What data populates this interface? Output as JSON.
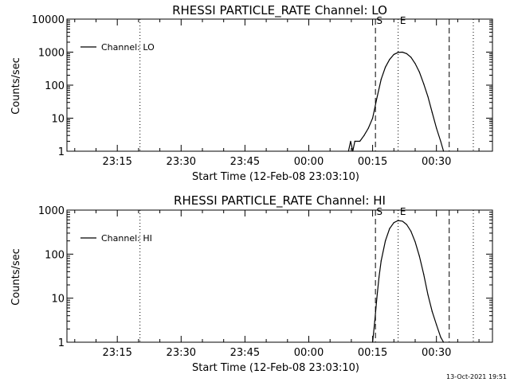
{
  "footer": {
    "timestamp": "13-Oct-2021 19:51"
  },
  "chart_data": [
    {
      "type": "line",
      "title": "RHESSI PARTICLE_RATE Channel: LO",
      "xlabel": "Start Time (12-Feb-08 23:03:10)",
      "ylabel": "Counts/sec",
      "yscale": "log",
      "ylim": [
        1,
        10000
      ],
      "xlim": [
        "23:03:10",
        "00:43:10"
      ],
      "x_ticks": [
        "23:15",
        "23:30",
        "23:45",
        "00:00",
        "00:15",
        "00:30"
      ],
      "y_ticks": [
        "1",
        "10",
        "100",
        "1000",
        "10000"
      ],
      "legend": {
        "entries": [
          "Channel: LO"
        ],
        "placement": "top-left"
      },
      "markers": [
        {
          "label": "S",
          "time": "00:15:40",
          "style": "dashed"
        },
        {
          "label": "E",
          "time": "00:21:00",
          "style": "dotted"
        }
      ],
      "vlines": [
        {
          "time": "23:20:20",
          "style": "dotted"
        },
        {
          "time": "00:33:00",
          "style": "dashed"
        },
        {
          "time": "00:38:40",
          "style": "dotted"
        }
      ],
      "series": [
        {
          "name": "Channel: LO",
          "x": [
            "00:09:20",
            "00:09:50",
            "00:10:20",
            "00:10:50",
            "00:12:00",
            "00:13:00",
            "00:14:00",
            "00:15:00",
            "00:16:00",
            "00:17:00",
            "00:18:00",
            "00:19:00",
            "00:20:00",
            "00:21:00",
            "00:22:00",
            "00:23:00",
            "00:24:00",
            "00:25:00",
            "00:26:00",
            "00:27:00",
            "00:28:00",
            "00:29:00",
            "00:30:00",
            "00:31:00",
            "00:31:40"
          ],
          "y": [
            1,
            2,
            1,
            2,
            2,
            3,
            5,
            10,
            40,
            150,
            350,
            600,
            850,
            980,
            1000,
            900,
            700,
            450,
            250,
            110,
            45,
            15,
            5,
            2,
            1
          ]
        }
      ]
    },
    {
      "type": "line",
      "title": "RHESSI PARTICLE_RATE Channel: HI",
      "xlabel": "Start Time (12-Feb-08 23:03:10)",
      "ylabel": "Counts/sec",
      "yscale": "log",
      "ylim": [
        1,
        1000
      ],
      "xlim": [
        "23:03:10",
        "00:43:10"
      ],
      "x_ticks": [
        "23:15",
        "23:30",
        "23:45",
        "00:00",
        "00:15",
        "00:30"
      ],
      "y_ticks": [
        "1",
        "10",
        "100",
        "1000"
      ],
      "legend": {
        "entries": [
          "Channel: HI"
        ],
        "placement": "top-left"
      },
      "markers": [
        {
          "label": "S",
          "time": "00:15:40",
          "style": "dashed"
        },
        {
          "label": "E",
          "time": "00:21:00",
          "style": "dotted"
        }
      ],
      "vlines": [
        {
          "time": "23:20:20",
          "style": "dotted"
        },
        {
          "time": "00:33:00",
          "style": "dashed"
        },
        {
          "time": "00:38:40",
          "style": "dotted"
        }
      ],
      "series": [
        {
          "name": "Channel: HI",
          "x": [
            "00:15:00",
            "00:15:30",
            "00:16:00",
            "00:16:30",
            "00:17:00",
            "00:18:00",
            "00:19:00",
            "00:20:00",
            "00:21:00",
            "00:22:00",
            "00:23:00",
            "00:24:00",
            "00:25:00",
            "00:26:00",
            "00:27:00",
            "00:28:00",
            "00:29:00",
            "00:30:00",
            "00:31:00",
            "00:31:40"
          ],
          "y": [
            1,
            3,
            10,
            30,
            70,
            200,
            380,
            520,
            580,
            560,
            470,
            330,
            190,
            90,
            35,
            12,
            5,
            2.5,
            1.3,
            1
          ]
        }
      ]
    }
  ]
}
